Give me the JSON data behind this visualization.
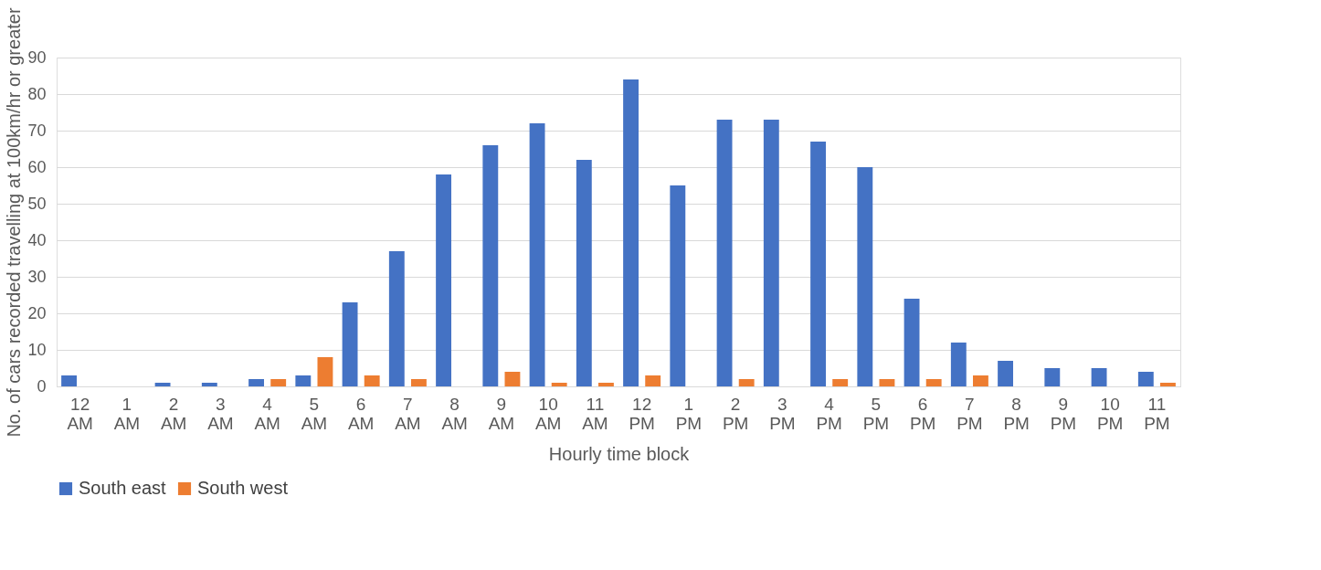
{
  "chart_data": {
    "type": "bar",
    "xlabel": "Hourly time block",
    "ylabel": "No. of cars recorded  travelling at 100km/hr or greater",
    "categories": [
      "12 AM",
      "1 AM",
      "2 AM",
      "3 AM",
      "4 AM",
      "5 AM",
      "6 AM",
      "7 AM",
      "8 AM",
      "9 AM",
      "10 AM",
      "11 AM",
      "12 PM",
      "1 PM",
      "2 PM",
      "3 PM",
      "4 PM",
      "5 PM",
      "6 PM",
      "7 PM",
      "8 PM",
      "9 PM",
      "10 PM",
      "11 PM"
    ],
    "series": [
      {
        "name": "South east",
        "color": "#4472c4",
        "values": [
          3,
          0,
          1,
          1,
          2,
          3,
          23,
          37,
          58,
          66,
          72,
          62,
          84,
          55,
          73,
          73,
          67,
          60,
          24,
          12,
          7,
          5,
          5,
          4
        ]
      },
      {
        "name": "South west",
        "color": "#ed7d31",
        "values": [
          0,
          0,
          0,
          0,
          2,
          8,
          3,
          2,
          0,
          4,
          1,
          1,
          3,
          0,
          2,
          0,
          2,
          2,
          2,
          3,
          0,
          0,
          0,
          1
        ]
      }
    ],
    "ylim": [
      0,
      90
    ],
    "yticks": [
      0,
      10,
      20,
      30,
      40,
      50,
      60,
      70,
      80,
      90
    ],
    "grid": "y",
    "legend": "bottom"
  }
}
